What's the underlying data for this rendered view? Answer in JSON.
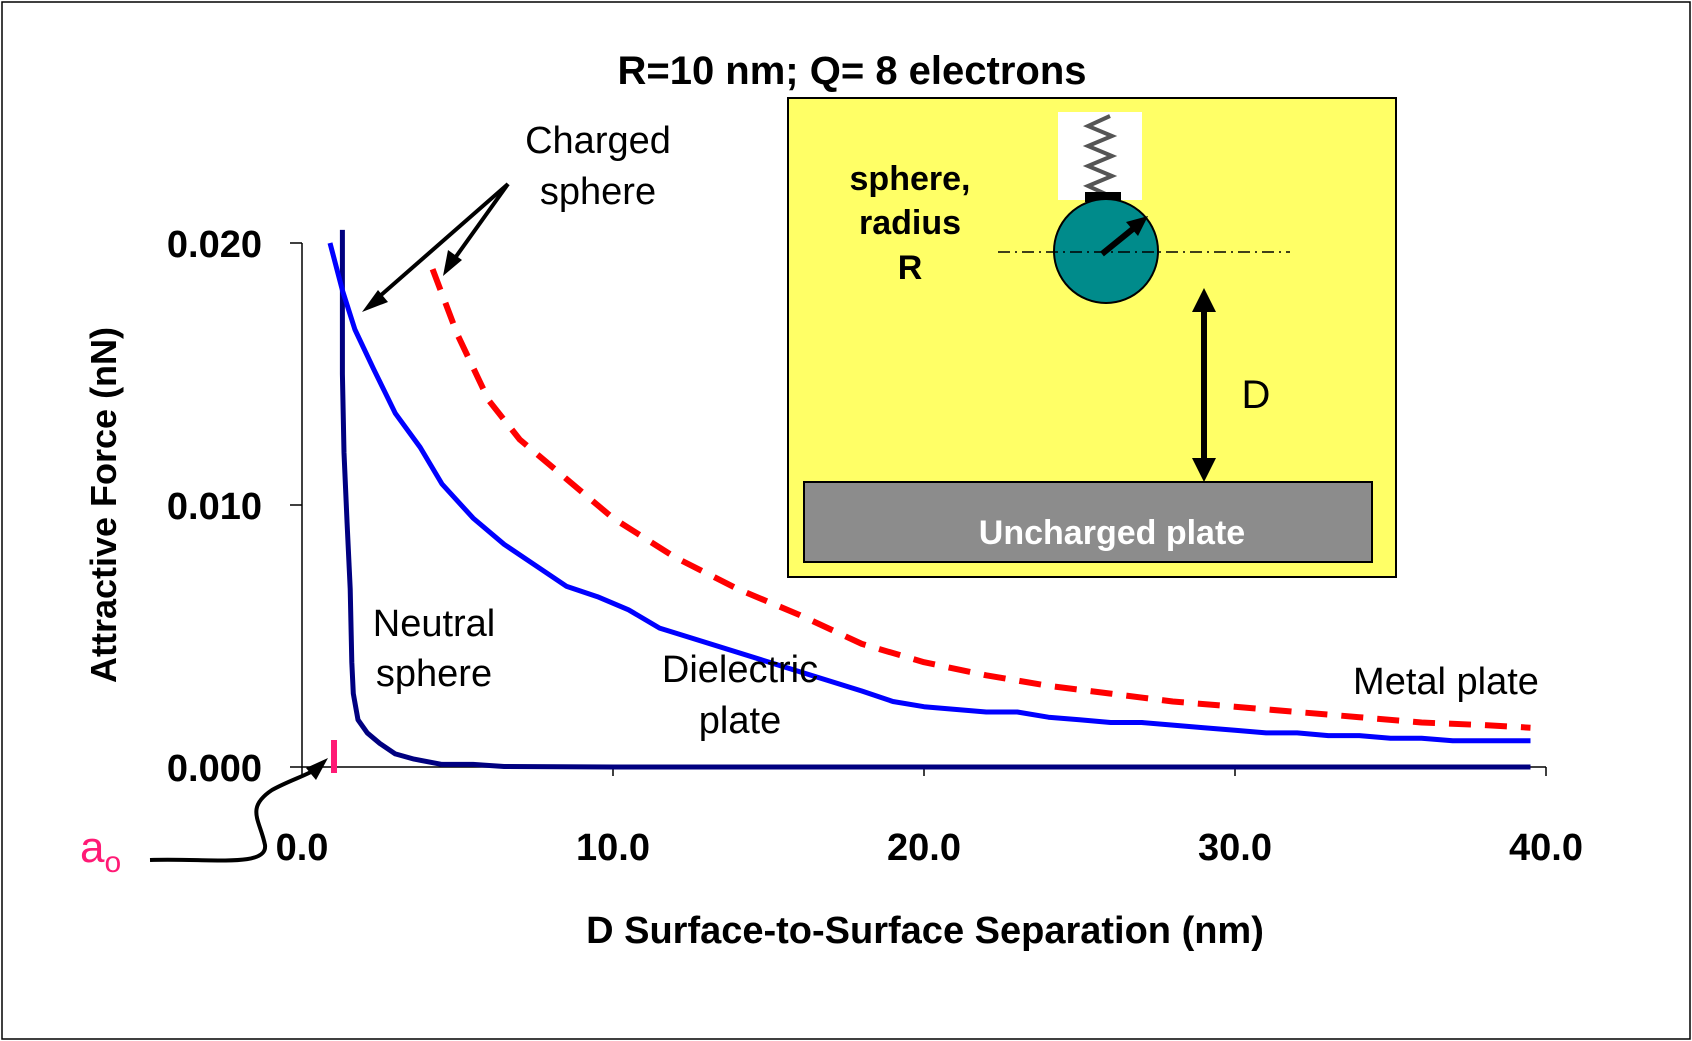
{
  "chart_data": {
    "type": "line",
    "title": "R=10 nm; Q= 8 electrons",
    "xlabel": "D  Surface-to-Surface Separation (nm)",
    "ylabel": "Attractive Force (nN)",
    "xlim": [
      0,
      40
    ],
    "ylim": [
      0,
      0.02
    ],
    "x_ticks": [
      0,
      10,
      20,
      30,
      40
    ],
    "x_tick_labels": [
      "0.0",
      "10.0",
      "20.0",
      "30.0",
      "40.0"
    ],
    "y_ticks": [
      0,
      0.01,
      0.02
    ],
    "y_tick_labels": [
      "0.000",
      "0.010",
      "0.020"
    ],
    "grid": false,
    "series": [
      {
        "key": "neutral",
        "color": "#000080",
        "style": "solid",
        "x": [
          1.3,
          1.3,
          1.35,
          1.45,
          1.55,
          1.6,
          1.65,
          1.8,
          2.1,
          2.5,
          3.0,
          3.6,
          4.5,
          5.5,
          6.5,
          10,
          20,
          30,
          39.5
        ],
        "y": [
          0.0205,
          0.015,
          0.012,
          0.0093,
          0.0068,
          0.004,
          0.0028,
          0.0018,
          0.0013,
          0.0009,
          0.0005,
          0.0003,
          0.0001,
          0.0001,
          2e-05,
          0,
          0,
          0,
          0
        ]
      },
      {
        "key": "dielectric",
        "color": "#0000ff",
        "style": "solid",
        "x": [
          0.9,
          1.3,
          1.7,
          2.3,
          3.0,
          3.8,
          4.5,
          5.5,
          6.5,
          7.5,
          8.5,
          9.5,
          10.5,
          11.5,
          18,
          19,
          20,
          21,
          22,
          23,
          24,
          25,
          26,
          27,
          28,
          29,
          30,
          31,
          32,
          33,
          34,
          35,
          36,
          37,
          38,
          39.5
        ],
        "y": [
          0.02,
          0.0182,
          0.0167,
          0.0152,
          0.0135,
          0.0122,
          0.0108,
          0.0095,
          0.0085,
          0.0077,
          0.0069,
          0.0065,
          0.006,
          0.0053,
          0.0029,
          0.0025,
          0.0023,
          0.0022,
          0.0021,
          0.0021,
          0.0019,
          0.0018,
          0.0017,
          0.0017,
          0.0016,
          0.0015,
          0.0014,
          0.0013,
          0.0013,
          0.0012,
          0.0012,
          0.0011,
          0.0011,
          0.001,
          0.001,
          0.001
        ]
      },
      {
        "key": "metal",
        "color": "#ff0000",
        "style": "dashed",
        "x": [
          4.2,
          5.0,
          6.0,
          7.0,
          8.5,
          10,
          12,
          14,
          16,
          18,
          20,
          22,
          24,
          26,
          28,
          30,
          32,
          34,
          36,
          38,
          39.5
        ],
        "y": [
          0.019,
          0.0165,
          0.014,
          0.0125,
          0.011,
          0.0095,
          0.008,
          0.0068,
          0.0058,
          0.0047,
          0.004,
          0.0035,
          0.0031,
          0.0028,
          0.0025,
          0.0023,
          0.0021,
          0.0019,
          0.0017,
          0.0016,
          0.0015
        ]
      }
    ],
    "annotations": {
      "charged": [
        "Charged",
        "sphere"
      ],
      "neutral": [
        "Neutral",
        "sphere"
      ],
      "dielectric": [
        "Dielectric",
        "plate"
      ],
      "metal": "Metal plate",
      "a0_main": "a",
      "a0_sub": "o"
    },
    "inset": {
      "sphere_label": [
        "sphere,",
        "radius",
        "R"
      ],
      "distance_label": "D",
      "plate_label": "Uncharged plate",
      "colors": {
        "background": "#ffff66",
        "sphere": "#008b8b",
        "plate": "#8c8c8c",
        "plate_text": "#ffffff"
      }
    },
    "colors": {
      "axis": "#000000",
      "a0": "#ff1a75"
    }
  }
}
